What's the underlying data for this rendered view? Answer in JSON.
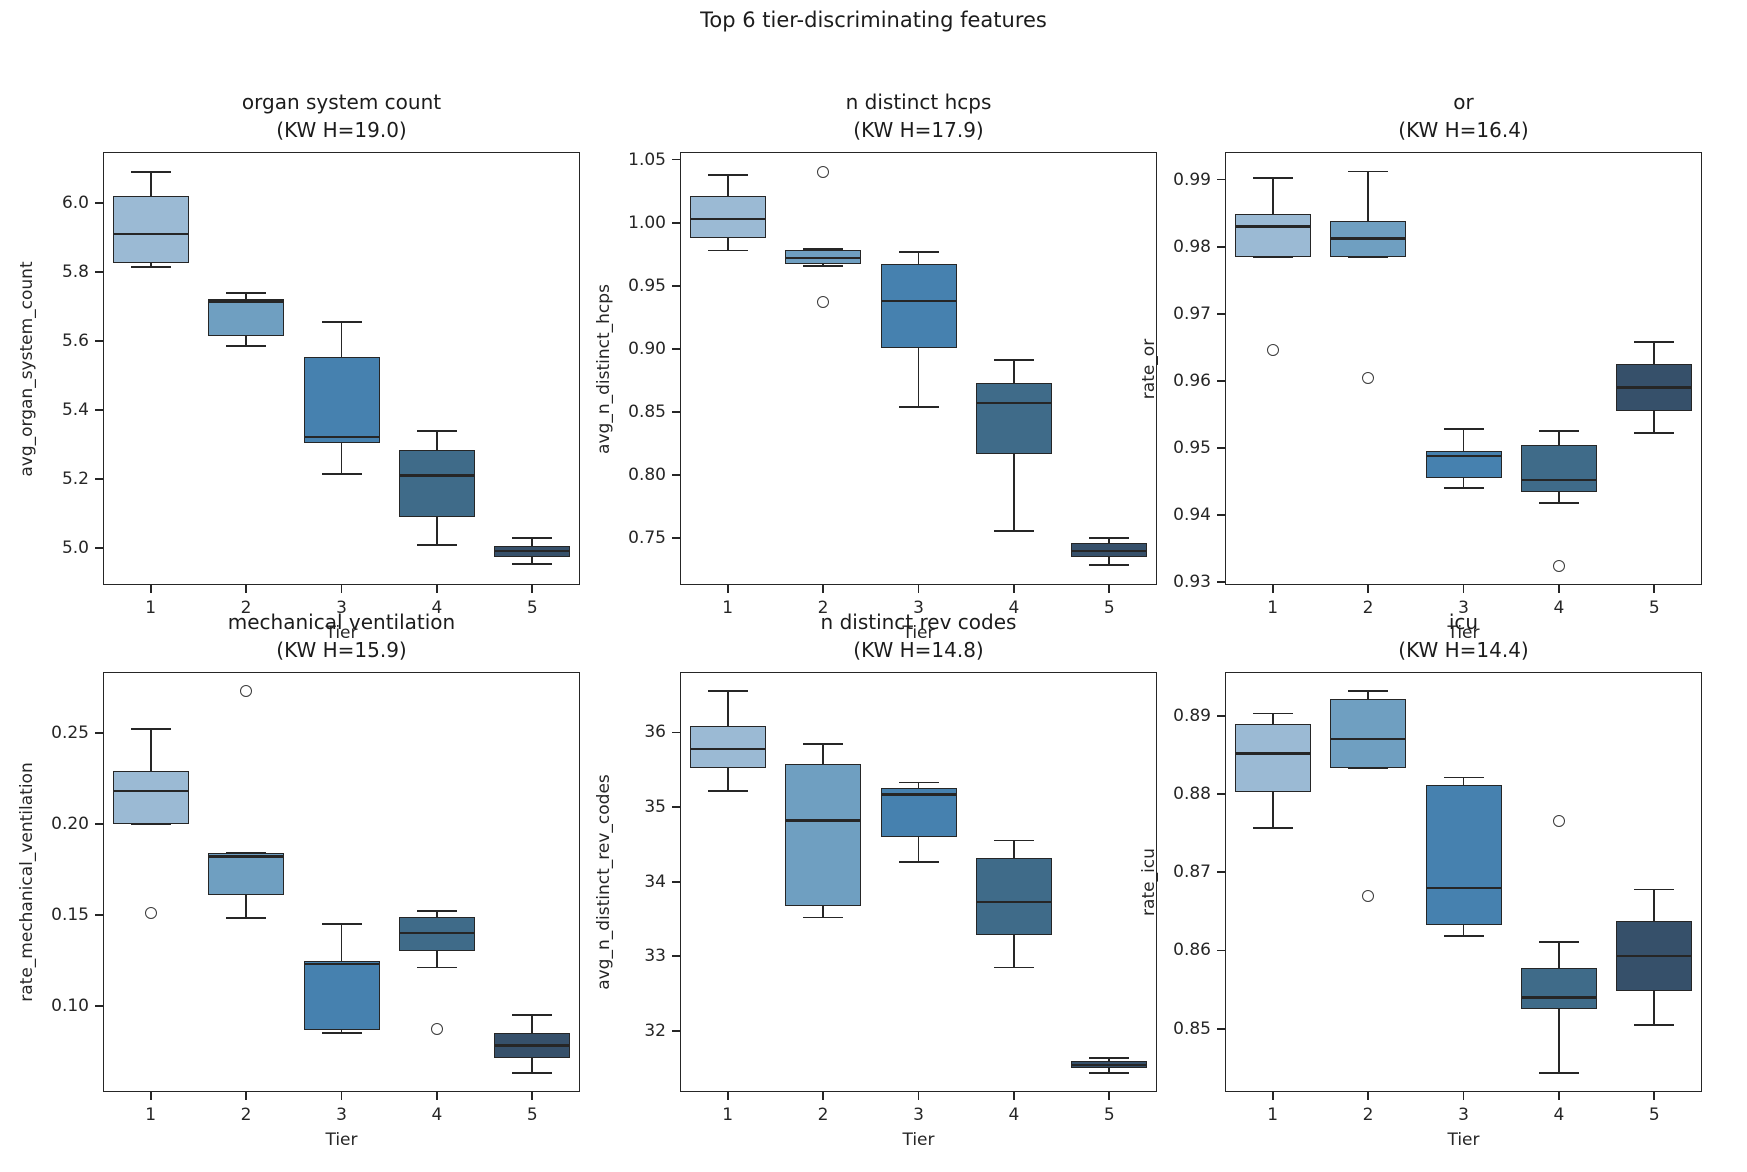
{
  "suptitle": "Top 6 tier-discriminating features",
  "xlabel": "Tier",
  "x_categories": [
    "1",
    "2",
    "3",
    "4",
    "5"
  ],
  "palette": {
    "tier_colors": [
      "#9bbad4",
      "#6f9fc1",
      "#4681af",
      "#3f6b89",
      "#36506a"
    ],
    "edge_color": "#262626",
    "outlier_edge_color": "#3a3a3a",
    "background": "#ffffff"
  },
  "chart_data": [
    {
      "type": "box",
      "title": "organ system count",
      "subtitle": "(KW H=19.0)",
      "kw_h": 19.0,
      "ylabel": "avg_organ_system_count",
      "xlabel": "Tier",
      "categories": [
        "1",
        "2",
        "3",
        "4",
        "5"
      ],
      "ylim": [
        4.893,
        6.148
      ],
      "yticks": [
        {
          "value": 5.0,
          "label": "5.0"
        },
        {
          "value": 5.2,
          "label": "5.2"
        },
        {
          "value": 5.4,
          "label": "5.4"
        },
        {
          "value": 5.6,
          "label": "5.6"
        },
        {
          "value": 5.8,
          "label": "5.8"
        },
        {
          "value": 6.0,
          "label": "6.0"
        }
      ],
      "boxes": [
        {
          "tier": "1",
          "whisker_low": 5.815,
          "q1": 5.825,
          "median": 5.91,
          "q3": 6.02,
          "whisker_high": 6.09,
          "outliers": []
        },
        {
          "tier": "2",
          "whisker_low": 5.585,
          "q1": 5.615,
          "median": 5.715,
          "q3": 5.722,
          "whisker_high": 5.74,
          "outliers": []
        },
        {
          "tier": "3",
          "whisker_low": 5.215,
          "q1": 5.305,
          "median": 5.322,
          "q3": 5.555,
          "whisker_high": 5.655,
          "outliers": []
        },
        {
          "tier": "4",
          "whisker_low": 5.01,
          "q1": 5.09,
          "median": 5.21,
          "q3": 5.285,
          "whisker_high": 5.34,
          "outliers": []
        },
        {
          "tier": "5",
          "whisker_low": 4.955,
          "q1": 4.975,
          "median": 4.992,
          "q3": 5.005,
          "whisker_high": 5.03,
          "outliers": []
        }
      ]
    },
    {
      "type": "box",
      "title": "n distinct hcps",
      "subtitle": "(KW H=17.9)",
      "kw_h": 17.9,
      "ylabel": "avg_n_distinct_hcps",
      "xlabel": "Tier",
      "categories": [
        "1",
        "2",
        "3",
        "4",
        "5"
      ],
      "ylim": [
        0.713,
        1.056
      ],
      "yticks": [
        {
          "value": 0.75,
          "label": "0.75"
        },
        {
          "value": 0.8,
          "label": "0.80"
        },
        {
          "value": 0.85,
          "label": "0.85"
        },
        {
          "value": 0.9,
          "label": "0.90"
        },
        {
          "value": 0.95,
          "label": "0.95"
        },
        {
          "value": 1.0,
          "label": "1.00"
        },
        {
          "value": 1.05,
          "label": "1.05"
        }
      ],
      "boxes": [
        {
          "tier": "1",
          "whisker_low": 0.978,
          "q1": 0.988,
          "median": 1.003,
          "q3": 1.021,
          "whisker_high": 1.038,
          "outliers": []
        },
        {
          "tier": "2",
          "whisker_low": 0.9655,
          "q1": 0.967,
          "median": 0.972,
          "q3": 0.978,
          "whisker_high": 0.979,
          "outliers": [
            1.04,
            0.937
          ]
        },
        {
          "tier": "3",
          "whisker_low": 0.854,
          "q1": 0.901,
          "median": 0.938,
          "q3": 0.967,
          "whisker_high": 0.977,
          "outliers": []
        },
        {
          "tier": "4",
          "whisker_low": 0.756,
          "q1": 0.817,
          "median": 0.857,
          "q3": 0.873,
          "whisker_high": 0.891,
          "outliers": []
        },
        {
          "tier": "5",
          "whisker_low": 0.729,
          "q1": 0.735,
          "median": 0.74,
          "q3": 0.746,
          "whisker_high": 0.75,
          "outliers": []
        }
      ]
    },
    {
      "type": "box",
      "title": "or",
      "subtitle": "(KW H=16.4)",
      "kw_h": 16.4,
      "ylabel": "rate_or",
      "xlabel": "Tier",
      "categories": [
        "1",
        "2",
        "3",
        "4",
        "5"
      ],
      "ylim": [
        0.9296,
        0.9941
      ],
      "yticks": [
        {
          "value": 0.93,
          "label": "0.93"
        },
        {
          "value": 0.94,
          "label": "0.94"
        },
        {
          "value": 0.95,
          "label": "0.95"
        },
        {
          "value": 0.96,
          "label": "0.96"
        },
        {
          "value": 0.97,
          "label": "0.97"
        },
        {
          "value": 0.98,
          "label": "0.98"
        },
        {
          "value": 0.99,
          "label": "0.99"
        }
      ],
      "boxes": [
        {
          "tier": "1",
          "whisker_low": 0.9785,
          "q1": 0.9785,
          "median": 0.983,
          "q3": 0.9848,
          "whisker_high": 0.9902,
          "outliers": [
            0.9646
          ]
        },
        {
          "tier": "2",
          "whisker_low": 0.9785,
          "q1": 0.9785,
          "median": 0.9812,
          "q3": 0.9838,
          "whisker_high": 0.9912,
          "outliers": [
            0.9604
          ]
        },
        {
          "tier": "3",
          "whisker_low": 0.944,
          "q1": 0.9455,
          "median": 0.9488,
          "q3": 0.9495,
          "whisker_high": 0.9528,
          "outliers": []
        },
        {
          "tier": "4",
          "whisker_low": 0.9418,
          "q1": 0.9435,
          "median": 0.9452,
          "q3": 0.9505,
          "whisker_high": 0.9525,
          "outliers": [
            0.9325
          ]
        },
        {
          "tier": "5",
          "whisker_low": 0.9522,
          "q1": 0.9555,
          "median": 0.959,
          "q3": 0.9625,
          "whisker_high": 0.9658,
          "outliers": []
        }
      ]
    },
    {
      "type": "box",
      "title": "mechanical ventilation",
      "subtitle": "(KW H=15.9)",
      "kw_h": 15.9,
      "ylabel": "rate_mechanical_ventilation",
      "xlabel": "Tier",
      "categories": [
        "1",
        "2",
        "3",
        "4",
        "5"
      ],
      "ylim": [
        0.0525,
        0.2835
      ],
      "yticks": [
        {
          "value": 0.1,
          "label": "0.10"
        },
        {
          "value": 0.15,
          "label": "0.15"
        },
        {
          "value": 0.2,
          "label": "0.20"
        },
        {
          "value": 0.25,
          "label": "0.25"
        }
      ],
      "boxes": [
        {
          "tier": "1",
          "whisker_low": 0.2,
          "q1": 0.2,
          "median": 0.218,
          "q3": 0.229,
          "whisker_high": 0.252,
          "outliers": [
            0.151
          ]
        },
        {
          "tier": "2",
          "whisker_low": 0.148,
          "q1": 0.161,
          "median": 0.182,
          "q3": 0.184,
          "whisker_high": 0.184,
          "outliers": [
            0.273
          ]
        },
        {
          "tier": "3",
          "whisker_low": 0.085,
          "q1": 0.0865,
          "median": 0.123,
          "q3": 0.1245,
          "whisker_high": 0.145,
          "outliers": []
        },
        {
          "tier": "4",
          "whisker_low": 0.121,
          "q1": 0.13,
          "median": 0.14,
          "q3": 0.149,
          "whisker_high": 0.152,
          "outliers": [
            0.087
          ]
        },
        {
          "tier": "5",
          "whisker_low": 0.063,
          "q1": 0.071,
          "median": 0.078,
          "q3": 0.085,
          "whisker_high": 0.095,
          "outliers": []
        }
      ]
    },
    {
      "type": "box",
      "title": "n distinct rev codes",
      "subtitle": "(KW H=14.8)",
      "kw_h": 14.8,
      "ylabel": "avg_n_distinct_rev_codes",
      "xlabel": "Tier",
      "categories": [
        "1",
        "2",
        "3",
        "4",
        "5"
      ],
      "ylim": [
        31.18,
        36.81
      ],
      "yticks": [
        {
          "value": 32,
          "label": "32"
        },
        {
          "value": 33,
          "label": "33"
        },
        {
          "value": 34,
          "label": "34"
        },
        {
          "value": 35,
          "label": "35"
        },
        {
          "value": 36,
          "label": "36"
        }
      ],
      "boxes": [
        {
          "tier": "1",
          "whisker_low": 35.22,
          "q1": 35.52,
          "median": 35.78,
          "q3": 36.08,
          "whisker_high": 36.55,
          "outliers": []
        },
        {
          "tier": "2",
          "whisker_low": 33.52,
          "q1": 33.67,
          "median": 34.82,
          "q3": 35.58,
          "whisker_high": 35.85,
          "outliers": []
        },
        {
          "tier": "3",
          "whisker_low": 34.26,
          "q1": 34.6,
          "median": 35.17,
          "q3": 35.25,
          "whisker_high": 35.33,
          "outliers": []
        },
        {
          "tier": "4",
          "whisker_low": 32.85,
          "q1": 33.28,
          "median": 33.73,
          "q3": 34.32,
          "whisker_high": 34.55,
          "outliers": []
        },
        {
          "tier": "5",
          "whisker_low": 31.44,
          "q1": 31.5,
          "median": 31.54,
          "q3": 31.6,
          "whisker_high": 31.64,
          "outliers": []
        }
      ]
    },
    {
      "type": "box",
      "title": "icu",
      "subtitle": "(KW H=14.4)",
      "kw_h": 14.4,
      "ylabel": "rate_icu",
      "xlabel": "Tier",
      "categories": [
        "1",
        "2",
        "3",
        "4",
        "5"
      ],
      "ylim": [
        0.8419,
        0.8956
      ],
      "yticks": [
        {
          "value": 0.85,
          "label": "0.85"
        },
        {
          "value": 0.86,
          "label": "0.86"
        },
        {
          "value": 0.87,
          "label": "0.87"
        },
        {
          "value": 0.88,
          "label": "0.88"
        },
        {
          "value": 0.89,
          "label": "0.89"
        }
      ],
      "boxes": [
        {
          "tier": "1",
          "whisker_low": 0.8757,
          "q1": 0.8803,
          "median": 0.8852,
          "q3": 0.889,
          "whisker_high": 0.8903,
          "outliers": []
        },
        {
          "tier": "2",
          "whisker_low": 0.8833,
          "q1": 0.8833,
          "median": 0.887,
          "q3": 0.8922,
          "whisker_high": 0.8932,
          "outliers": [
            0.867
          ]
        },
        {
          "tier": "3",
          "whisker_low": 0.8618,
          "q1": 0.8632,
          "median": 0.868,
          "q3": 0.8812,
          "whisker_high": 0.8821,
          "outliers": []
        },
        {
          "tier": "4",
          "whisker_low": 0.8443,
          "q1": 0.8525,
          "median": 0.854,
          "q3": 0.8578,
          "whisker_high": 0.8611,
          "outliers": [
            0.8765
          ]
        },
        {
          "tier": "5",
          "whisker_low": 0.8505,
          "q1": 0.8548,
          "median": 0.8593,
          "q3": 0.8637,
          "whisker_high": 0.8678,
          "outliers": []
        }
      ]
    }
  ]
}
